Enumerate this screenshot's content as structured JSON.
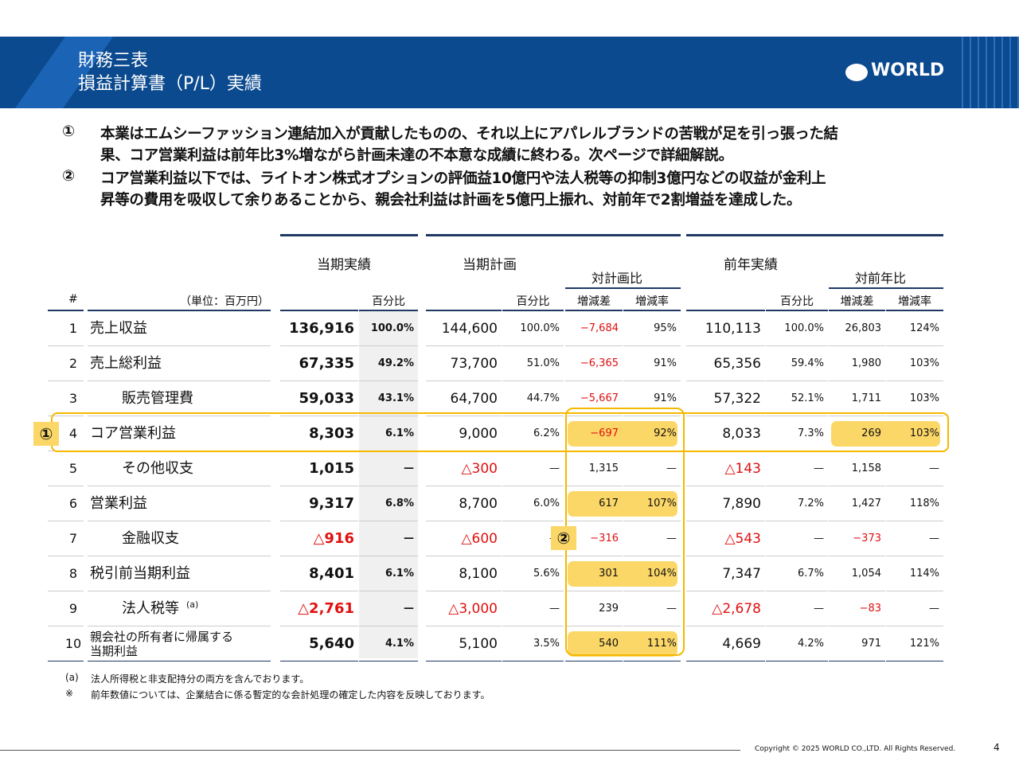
{
  "header": {
    "title_lines": [
      "財務三表",
      "損益計算書（P/L）実績"
    ],
    "logo": "WORLD"
  },
  "bullets": [
    {
      "marker": "①",
      "lines": [
        "本業はエムシーファッション連結加入が貢献したものの、それ以上にアパレルブランドの苦戦が足を引っ張った結",
        "果、コア営業利益は前年比3%増ながら計画未達の不本意な成績に終わる。次ページで詳細解説。"
      ]
    },
    {
      "marker": "②",
      "lines": [
        "コア営業利益以下では、ライトオン株式オプションの評価益10億円や法人税等の抑制3億円などの収益が金利上",
        "昇等の費用を吸収して余りあることから、親会社利益は計画を5億円上振れ、対前年で2割増益を達成した。"
      ]
    }
  ],
  "table": {
    "groups": [
      "当期実績",
      "当期計画",
      "前年実績"
    ],
    "subgroups": [
      "対計画比",
      "対前年比"
    ],
    "columns": [
      "#",
      "（単位：百万円）",
      "百分比",
      "百分比",
      "増減差",
      "増減率",
      "百分比",
      "増減差",
      "増減率"
    ],
    "rows": [
      {
        "no": "1",
        "label": [
          "売上収益"
        ],
        "indent": false,
        "cells": [
          "136,916",
          "100.0%",
          "144,600",
          "100.0%",
          "−7,684",
          "95%",
          "110,113",
          "100.0%",
          "26,803",
          "124%"
        ],
        "highlight": []
      },
      {
        "no": "2",
        "label": [
          "売上総利益"
        ],
        "indent": false,
        "cells": [
          "67,335",
          "49.2%",
          "73,700",
          "51.0%",
          "−6,365",
          "91%",
          "65,356",
          "59.4%",
          "1,980",
          "103%"
        ],
        "highlight": []
      },
      {
        "no": "3",
        "label": [
          "販売管理費"
        ],
        "indent": true,
        "cells": [
          "59,033",
          "43.1%",
          "64,700",
          "44.7%",
          "−5,667",
          "91%",
          "57,322",
          "52.1%",
          "1,711",
          "103%"
        ],
        "highlight": []
      },
      {
        "no": "4",
        "label": [
          "コア営業利益"
        ],
        "indent": false,
        "cells": [
          "8,303",
          "6.1%",
          "9,000",
          "6.2%",
          "−697",
          "92%",
          "8,033",
          "7.3%",
          "269",
          "103%"
        ],
        "highlight": [
          4,
          8
        ]
      },
      {
        "no": "5",
        "label": [
          "その他収支"
        ],
        "indent": true,
        "cells": [
          "1,015",
          "—",
          "△300",
          "—",
          "1,315",
          "—",
          "△143",
          "—",
          "1,158",
          "—"
        ],
        "highlight": []
      },
      {
        "no": "6",
        "label": [
          "営業利益"
        ],
        "indent": false,
        "cells": [
          "9,317",
          "6.8%",
          "8,700",
          "6.0%",
          "617",
          "107%",
          "7,890",
          "7.2%",
          "1,427",
          "118%"
        ],
        "highlight": [
          4
        ]
      },
      {
        "no": "7",
        "label": [
          "金融収支"
        ],
        "indent": true,
        "cells": [
          "△916",
          "—",
          "△600",
          "—",
          "−316",
          "—",
          "△543",
          "—",
          "−373",
          "—"
        ],
        "highlight": []
      },
      {
        "no": "8",
        "label": [
          "税引前当期利益"
        ],
        "indent": false,
        "cells": [
          "8,401",
          "6.1%",
          "8,100",
          "5.6%",
          "301",
          "104%",
          "7,347",
          "6.7%",
          "1,054",
          "114%"
        ],
        "highlight": [
          4
        ]
      },
      {
        "no": "9",
        "label": [
          "法人税等"
        ],
        "sup": "(a)",
        "indent": true,
        "cells": [
          "△2,761",
          "—",
          "△3,000",
          "—",
          "239",
          "—",
          "△2,678",
          "—",
          "−83",
          "—"
        ],
        "highlight": []
      },
      {
        "no": "10",
        "label": [
          "親会社の所有者に帰属する",
          "当期利益"
        ],
        "indent": false,
        "cells": [
          "5,640",
          "4.1%",
          "5,100",
          "3.5%",
          "540",
          "111%",
          "4,669",
          "4.2%",
          "971",
          "121%"
        ],
        "highlight": [
          4
        ]
      }
    ],
    "markers": [
      "①",
      "②"
    ]
  },
  "footnotes": [
    {
      "mark": "(a)",
      "text": "法人所得税と非支配持分の両方を含んでおります。"
    },
    {
      "mark": "※",
      "text": "前年数値については、企業結合に係る暫定的な会計処理の確定した内容を反映しております。"
    }
  ],
  "footer": {
    "copyright": "Copyright © 2025 WORLD CO.,LTD. All Rights Reserved.",
    "page": "4"
  }
}
